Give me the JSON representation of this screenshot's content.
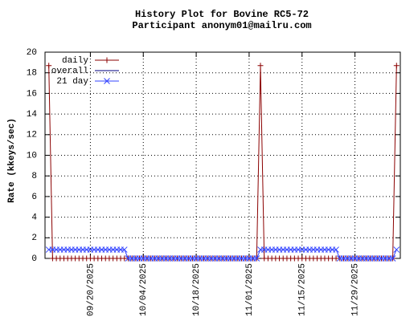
{
  "chart_data": {
    "type": "line",
    "title": "History Plot for Bovine RC5-72",
    "subtitle": "Participant anonym01@mailru.com",
    "y_label": "Rate (kkeys/sec)",
    "x": [
      "2025-09-09",
      "2025-09-10",
      "2025-09-11",
      "2025-09-12",
      "2025-09-13",
      "2025-09-14",
      "2025-09-15",
      "2025-09-16",
      "2025-09-17",
      "2025-09-18",
      "2025-09-19",
      "2025-09-20",
      "2025-09-21",
      "2025-09-22",
      "2025-09-23",
      "2025-09-24",
      "2025-09-25",
      "2025-09-26",
      "2025-09-27",
      "2025-09-28",
      "2025-09-29",
      "2025-09-30",
      "2025-10-01",
      "2025-10-02",
      "2025-10-03",
      "2025-10-04",
      "2025-10-05",
      "2025-10-06",
      "2025-10-07",
      "2025-10-08",
      "2025-10-09",
      "2025-10-10",
      "2025-10-11",
      "2025-10-12",
      "2025-10-13",
      "2025-10-14",
      "2025-10-15",
      "2025-10-16",
      "2025-10-17",
      "2025-10-18",
      "2025-10-19",
      "2025-10-20",
      "2025-10-21",
      "2025-10-22",
      "2025-10-23",
      "2025-10-24",
      "2025-10-25",
      "2025-10-26",
      "2025-10-27",
      "2025-10-28",
      "2025-10-29",
      "2025-10-30",
      "2025-10-31",
      "2025-11-01",
      "2025-11-02",
      "2025-11-03",
      "2025-11-04",
      "2025-11-05",
      "2025-11-06",
      "2025-11-07",
      "2025-11-08",
      "2025-11-09",
      "2025-11-10",
      "2025-11-11",
      "2025-11-12",
      "2025-11-13",
      "2025-11-14",
      "2025-11-15",
      "2025-11-16",
      "2025-11-17",
      "2025-11-18",
      "2025-11-19",
      "2025-11-20",
      "2025-11-21",
      "2025-11-22",
      "2025-11-23",
      "2025-11-24",
      "2025-11-25",
      "2025-11-26",
      "2025-11-27",
      "2025-11-28",
      "2025-11-29",
      "2025-11-30",
      "2025-12-01",
      "2025-12-02",
      "2025-12-03",
      "2025-12-04",
      "2025-12-05",
      "2025-12-06",
      "2025-12-07",
      "2025-12-08",
      "2025-12-09",
      "2025-12-10"
    ],
    "series": [
      {
        "name": "daily",
        "color": "#8b0000",
        "marker": "plus",
        "values": [
          18.7,
          0,
          0,
          0,
          0,
          0,
          0,
          0,
          0,
          0,
          0,
          0,
          0,
          0,
          0,
          0,
          0,
          0,
          0,
          0,
          0,
          0,
          0,
          0,
          0,
          0,
          0,
          0,
          0,
          0,
          0,
          0,
          0,
          0,
          0,
          0,
          0,
          0,
          0,
          0,
          0,
          0,
          0,
          0,
          0,
          0,
          0,
          0,
          0,
          0,
          0,
          0,
          0,
          0,
          0,
          0,
          18.7,
          0,
          0,
          0,
          0,
          0,
          0,
          0,
          0,
          0,
          0,
          0,
          0,
          0,
          0,
          0,
          0,
          0,
          0,
          0,
          0,
          0,
          0,
          0,
          0,
          0,
          0,
          0,
          0,
          0,
          0,
          0,
          0,
          0,
          0,
          0,
          18.7
        ]
      },
      {
        "name": "overall",
        "color": "#000080",
        "marker": "none",
        "values": [
          null,
          null,
          null,
          null,
          null,
          null,
          null,
          null,
          null,
          null,
          null,
          null,
          null,
          null,
          null,
          null,
          null,
          null,
          null,
          null,
          null,
          null,
          null,
          null,
          null,
          null,
          null,
          null,
          null,
          null,
          null,
          null,
          null,
          null,
          null,
          null,
          null,
          null,
          null,
          null,
          null,
          null,
          null,
          null,
          null,
          null,
          null,
          null,
          null,
          null,
          null,
          null,
          null,
          null,
          null,
          null,
          null,
          null,
          null,
          null,
          null,
          null,
          null,
          null,
          null,
          null,
          null,
          null,
          null,
          null,
          null,
          null,
          null,
          null,
          null,
          null,
          null,
          null,
          null,
          null,
          null,
          null,
          null,
          null,
          null,
          null,
          null,
          null,
          null,
          null,
          null,
          null,
          null
        ]
      },
      {
        "name": "21 day",
        "color": "#3344ff",
        "marker": "cross",
        "values": [
          0.85,
          0.85,
          0.85,
          0.85,
          0.85,
          0.85,
          0.85,
          0.85,
          0.85,
          0.85,
          0.85,
          0.85,
          0.85,
          0.85,
          0.85,
          0.85,
          0.85,
          0.85,
          0.85,
          0.85,
          0.85,
          0,
          0,
          0,
          0,
          0,
          0,
          0,
          0,
          0,
          0,
          0,
          0,
          0,
          0,
          0,
          0,
          0,
          0,
          0,
          0,
          0,
          0,
          0,
          0,
          0,
          0,
          0,
          0,
          0,
          0,
          0,
          0,
          0,
          0,
          0,
          0.85,
          0.85,
          0.85,
          0.85,
          0.85,
          0.85,
          0.85,
          0.85,
          0.85,
          0.85,
          0.85,
          0.85,
          0.85,
          0.85,
          0.85,
          0.85,
          0.85,
          0.85,
          0.85,
          0.85,
          0.85,
          0,
          0,
          0,
          0,
          0,
          0,
          0,
          0,
          0,
          0,
          0,
          0,
          0,
          0,
          0,
          0.85
        ]
      }
    ],
    "xlim": [
      "2025-09-08",
      "2025-12-11"
    ],
    "xticks": [
      {
        "value": "2025-09-20",
        "label": "09/20/2025"
      },
      {
        "value": "2025-10-04",
        "label": "10/04/2025"
      },
      {
        "value": "2025-10-18",
        "label": "10/18/2025"
      },
      {
        "value": "2025-11-01",
        "label": "11/01/2025"
      },
      {
        "value": "2025-11-15",
        "label": "11/15/2025"
      },
      {
        "value": "2025-11-29",
        "label": "11/29/2025"
      }
    ],
    "ylim": [
      0,
      20
    ],
    "yticks": [
      0,
      2,
      4,
      6,
      8,
      10,
      12,
      14,
      16,
      18,
      20
    ],
    "grid": true,
    "legend": "top-left"
  }
}
